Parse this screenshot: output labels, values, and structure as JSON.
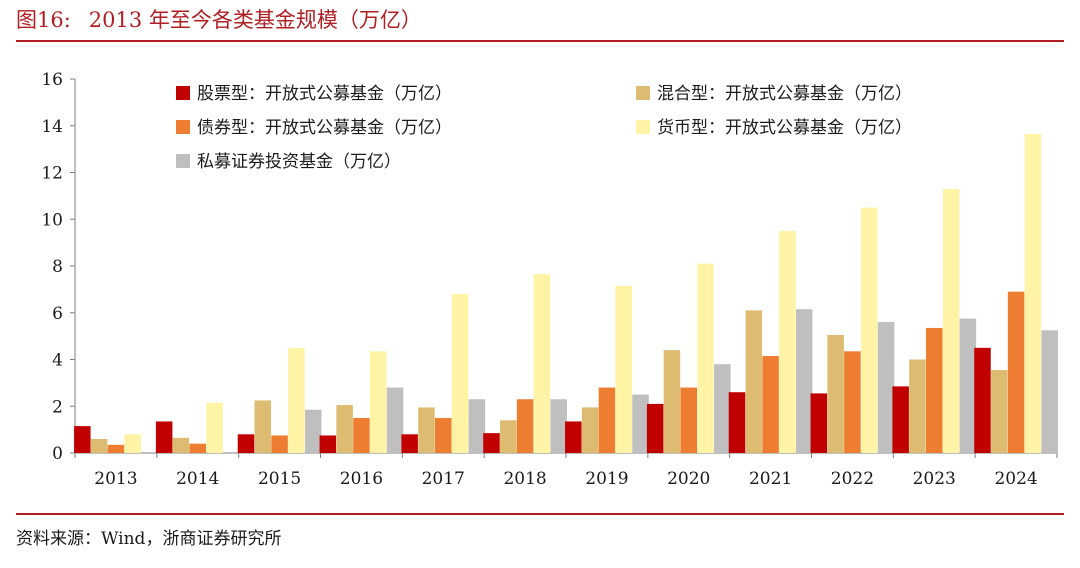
{
  "header": {
    "figure_label": "图16:",
    "title": "2013 年至今各类基金规模（万亿）"
  },
  "footer": {
    "source": "资料来源：Wind，浙商证券研究所"
  },
  "chart_data": {
    "type": "bar",
    "title": "2013 年至今各类基金规模（万亿）",
    "xlabel": "",
    "ylabel": "",
    "ylim": [
      0,
      16
    ],
    "yticks": [
      0,
      2,
      4,
      6,
      8,
      10,
      12,
      14,
      16
    ],
    "grid": false,
    "legend_position": "top-left",
    "categories": [
      "2013",
      "2014",
      "2015",
      "2016",
      "2017",
      "2018",
      "2019",
      "2020",
      "2021",
      "2022",
      "2023",
      "2024"
    ],
    "series": [
      {
        "name": "股票型：开放式公募基金（万亿）",
        "color": "#c00000",
        "values": [
          1.15,
          1.35,
          0.8,
          0.75,
          0.8,
          0.85,
          1.35,
          2.1,
          2.6,
          2.55,
          2.85,
          4.5
        ]
      },
      {
        "name": "混合型：开放式公募基金（万亿）",
        "color": "#ddbb70",
        "values": [
          0.6,
          0.65,
          2.25,
          2.05,
          1.95,
          1.4,
          1.95,
          4.4,
          6.1,
          5.05,
          4.0,
          3.55
        ]
      },
      {
        "name": "债券型：开放式公募基金（万亿）",
        "color": "#ed7d31",
        "values": [
          0.35,
          0.4,
          0.75,
          1.5,
          1.5,
          2.3,
          2.8,
          2.8,
          4.15,
          4.35,
          5.35,
          6.9
        ]
      },
      {
        "name": "货币型：开放式公募基金（万亿）",
        "color": "#fff3a6",
        "values": [
          0.8,
          2.15,
          4.5,
          4.35,
          6.8,
          7.65,
          7.15,
          8.1,
          9.5,
          10.5,
          11.3,
          13.65
        ]
      },
      {
        "name": "私募证券投资基金（万亿）",
        "color": "#bfbfbf",
        "values": [
          null,
          null,
          1.85,
          2.8,
          2.3,
          2.3,
          2.5,
          3.8,
          6.15,
          5.6,
          5.75,
          5.25
        ]
      }
    ]
  }
}
